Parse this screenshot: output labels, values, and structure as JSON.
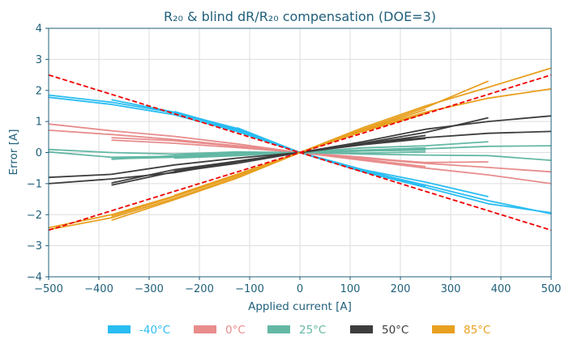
{
  "chart_data": {
    "type": "line",
    "title": "R₂₀ & blind dR/R₂₀ compensation (DOE=3)",
    "xlabel": "Applied current [A]",
    "ylabel": "Error [A]",
    "xlim": [
      -500,
      500
    ],
    "ylim": [
      -4,
      4
    ],
    "xticks": [
      -500,
      -400,
      -300,
      -200,
      -100,
      0,
      100,
      200,
      300,
      400,
      500
    ],
    "yticks": [
      -4,
      -3,
      -2,
      -1,
      0,
      1,
      2,
      3,
      4
    ],
    "grid": true,
    "legend_position": "bottom-center",
    "legend": [
      {
        "label": "-40°C",
        "color": "#29bdf2"
      },
      {
        "label": "0°C",
        "color": "#e88c8c"
      },
      {
        "label": "25°C",
        "color": "#63b8a4"
      },
      {
        "label": "50°C",
        "color": "#3d3d3d"
      },
      {
        "label": "85°C",
        "color": "#e8a020"
      }
    ],
    "reference_lines": {
      "color": "#ee0000",
      "style": "dashed",
      "lines": [
        {
          "x": [
            -500,
            500
          ],
          "y": [
            2.5,
            -2.5
          ]
        },
        {
          "x": [
            -500,
            500
          ],
          "y": [
            -2.5,
            2.5
          ]
        }
      ]
    },
    "series": [
      {
        "group": 0,
        "x": [
          -500,
          -375,
          -250,
          -125,
          0,
          125,
          250,
          375,
          500
        ],
        "y": [
          1.85,
          1.62,
          1.28,
          0.72,
          0.0,
          -0.58,
          -1.05,
          -1.55,
          -1.97
        ]
      },
      {
        "group": 0,
        "x": [
          -500,
          -375,
          -250,
          -125,
          0,
          125,
          250,
          375,
          500
        ],
        "y": [
          1.78,
          1.55,
          1.22,
          0.68,
          0.0,
          -0.62,
          -1.12,
          -1.65,
          -1.94
        ]
      },
      {
        "group": 0,
        "x": [
          -375,
          -250,
          -125,
          0,
          125,
          250,
          375
        ],
        "y": [
          1.7,
          1.3,
          0.78,
          0.0,
          -0.55,
          -0.95,
          -1.42
        ]
      },
      {
        "group": 0,
        "x": [
          -250,
          -125,
          0,
          125,
          250
        ],
        "y": [
          1.32,
          0.75,
          0.0,
          -0.55,
          -1.1
        ]
      },
      {
        "group": 0,
        "x": [
          -125,
          0,
          125
        ],
        "y": [
          0.8,
          0.0,
          -0.6
        ]
      },
      {
        "group": 1,
        "x": [
          -500,
          -375,
          -250,
          -125,
          0,
          125,
          250,
          375,
          500
        ],
        "y": [
          0.92,
          0.7,
          0.52,
          0.28,
          0.0,
          -0.25,
          -0.5,
          -0.72,
          -1.0
        ]
      },
      {
        "group": 1,
        "x": [
          -500,
          -375,
          -250,
          -125,
          0,
          125,
          250,
          375,
          500
        ],
        "y": [
          0.72,
          0.58,
          0.42,
          0.22,
          0.0,
          -0.18,
          -0.35,
          -0.48,
          -0.62
        ]
      },
      {
        "group": 1,
        "x": [
          -375,
          -250,
          -125,
          0,
          125,
          250,
          375
        ],
        "y": [
          0.48,
          0.38,
          0.2,
          0.0,
          -0.18,
          -0.32,
          -0.3
        ]
      },
      {
        "group": 1,
        "x": [
          -375,
          -250,
          -125,
          0,
          125,
          250
        ],
        "y": [
          0.4,
          0.3,
          0.16,
          0.0,
          -0.22,
          -0.45
        ]
      },
      {
        "group": 1,
        "x": [
          -250,
          -125,
          0,
          125,
          250
        ],
        "y": [
          0.38,
          0.22,
          0.0,
          -0.15,
          -0.35
        ]
      },
      {
        "group": 2,
        "x": [
          -500,
          -375,
          -250,
          -125,
          0,
          125,
          250,
          375,
          500
        ],
        "y": [
          0.1,
          0.0,
          -0.05,
          -0.02,
          0.0,
          0.05,
          0.12,
          0.2,
          0.22
        ]
      },
      {
        "group": 2,
        "x": [
          -500,
          -375,
          -250,
          -125,
          0,
          125,
          250,
          375,
          500
        ],
        "y": [
          0.02,
          -0.15,
          -0.12,
          -0.08,
          0.0,
          -0.05,
          -0.08,
          -0.1,
          -0.25
        ]
      },
      {
        "group": 2,
        "x": [
          -375,
          -250,
          -125,
          0,
          125,
          250,
          375
        ],
        "y": [
          -0.2,
          -0.15,
          -0.08,
          0.0,
          0.15,
          0.22,
          0.35
        ]
      },
      {
        "group": 2,
        "x": [
          -375,
          -250,
          -125,
          0,
          125,
          250
        ],
        "y": [
          -0.22,
          -0.1,
          -0.05,
          0.0,
          0.05,
          0.08
        ]
      },
      {
        "group": 2,
        "x": [
          -250,
          -125,
          0,
          125,
          250
        ],
        "y": [
          -0.05,
          0.02,
          0.0,
          -0.02,
          0.02
        ]
      },
      {
        "group": 2,
        "x": [
          -250,
          -125,
          0,
          125,
          250
        ],
        "y": [
          -0.18,
          -0.1,
          0.0,
          0.08,
          0.15
        ]
      },
      {
        "group": 3,
        "x": [
          -500,
          -375,
          -250,
          -125,
          0,
          125,
          250,
          375,
          500
        ],
        "y": [
          -0.8,
          -0.7,
          -0.4,
          -0.18,
          0.0,
          0.35,
          0.75,
          1.0,
          1.18
        ]
      },
      {
        "group": 3,
        "x": [
          -500,
          -375,
          -250,
          -125,
          0,
          125,
          250,
          375,
          500
        ],
        "y": [
          -1.0,
          -0.85,
          -0.65,
          -0.3,
          0.0,
          0.3,
          0.48,
          0.62,
          0.68
        ]
      },
      {
        "group": 3,
        "x": [
          -375,
          -250,
          -125,
          0,
          125,
          250,
          375
        ],
        "y": [
          -1.05,
          -0.62,
          -0.35,
          0.0,
          0.3,
          0.65,
          1.12
        ]
      },
      {
        "group": 3,
        "x": [
          -375,
          -250,
          -125,
          0,
          125,
          250
        ],
        "y": [
          -0.98,
          -0.55,
          -0.28,
          0.0,
          0.25,
          0.45
        ]
      },
      {
        "group": 3,
        "x": [
          -250,
          -125,
          0,
          125,
          250
        ],
        "y": [
          -0.6,
          -0.28,
          0.0,
          0.28,
          0.55
        ]
      },
      {
        "group": 4,
        "x": [
          -500,
          -375,
          -250,
          -125,
          0,
          125,
          250,
          375,
          500
        ],
        "y": [
          -2.48,
          -2.1,
          -1.48,
          -0.8,
          0.0,
          0.8,
          1.5,
          2.1,
          2.72
        ]
      },
      {
        "group": 4,
        "x": [
          -500,
          -375,
          -250,
          -125,
          0,
          125,
          250,
          375,
          500
        ],
        "y": [
          -2.42,
          -2.0,
          -1.4,
          -0.72,
          0.0,
          0.7,
          1.3,
          1.75,
          2.05
        ]
      },
      {
        "group": 4,
        "x": [
          -375,
          -250,
          -125,
          0,
          125,
          250,
          375
        ],
        "y": [
          -2.18,
          -1.52,
          -0.82,
          0.0,
          0.75,
          1.45,
          2.3
        ]
      },
      {
        "group": 4,
        "x": [
          -375,
          -250,
          -125,
          0,
          125,
          250
        ],
        "y": [
          -2.05,
          -1.42,
          -0.75,
          0.0,
          0.72,
          1.38
        ]
      },
      {
        "group": 4,
        "x": [
          -250,
          -125,
          0,
          125,
          250
        ],
        "y": [
          -1.38,
          -0.7,
          0.0,
          0.68,
          1.25
        ]
      }
    ]
  }
}
